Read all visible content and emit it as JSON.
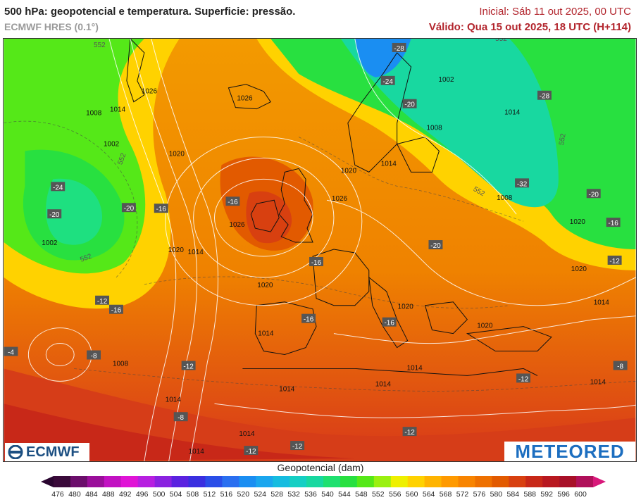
{
  "header": {
    "title": "500 hPa: geopotencial e temperatura. Superficie: pressão.",
    "model": "ECMWF HRES (0.1°)",
    "initial": "Inicial: Sáb 11 out 2025, 00 UTC",
    "valid": "Válido: Qua 15 out 2025, 18 UTC (H+114)"
  },
  "legend": {
    "title": "Geopotencial (dam)",
    "ticks": [
      "476",
      "480",
      "484",
      "488",
      "492",
      "496",
      "500",
      "504",
      "508",
      "512",
      "516",
      "520",
      "524",
      "528",
      "532",
      "536",
      "540",
      "544",
      "548",
      "552",
      "556",
      "560",
      "564",
      "568",
      "572",
      "576",
      "580",
      "584",
      "588",
      "592",
      "596",
      "600"
    ],
    "colors": [
      "#3a0a3a",
      "#6b0e6b",
      "#9a0e9a",
      "#c211c2",
      "#e014d6",
      "#b71fe0",
      "#8a22e0",
      "#5b22e0",
      "#3a2fe0",
      "#2a4ee8",
      "#2a6ff0",
      "#1a8ef2",
      "#1aa6ee",
      "#15bce0",
      "#15cfc4",
      "#18d8a0",
      "#1ee070",
      "#28e040",
      "#55e818",
      "#9af010",
      "#eef000",
      "#ffd200",
      "#ffb400",
      "#ff9a00",
      "#f88400",
      "#ee7000",
      "#e25a00",
      "#d84010",
      "#c82818",
      "#b81820",
      "#a81028",
      "#b0105a"
    ]
  },
  "map_labels": {
    "temperature": [
      "-28",
      "-24",
      "-20",
      "-16",
      "-12",
      "-8",
      "-4",
      "-20",
      "-24",
      "-28",
      "-32",
      "-20",
      "-16",
      "-12",
      "-8",
      "-16",
      "-20",
      "-16",
      "-16",
      "-12",
      "-16",
      "-20",
      "-16",
      "-12",
      "-12",
      "-8",
      "-12",
      "-12"
    ],
    "pressure": [
      "1026",
      "1026",
      "1008",
      "1014",
      "1002",
      "1020",
      "1002",
      "1008",
      "1014",
      "1026",
      "1020",
      "1026",
      "1020",
      "1014",
      "1008",
      "1020",
      "1014",
      "1014",
      "1014",
      "1014",
      "1008",
      "1002",
      "1014",
      "1020",
      "1020",
      "1014",
      "1020",
      "1014",
      "1014",
      "1014",
      "1014",
      "1020"
    ],
    "geopotential": [
      "552",
      "552",
      "552",
      "552",
      "552",
      "552"
    ]
  },
  "logos": {
    "left": "ECMWF",
    "right": "METEORED"
  },
  "colors": {
    "title_red": "#b2242c",
    "low_green": "#1ee070",
    "high_orange": "#f07c00",
    "ridge_red": "#e0541a"
  }
}
